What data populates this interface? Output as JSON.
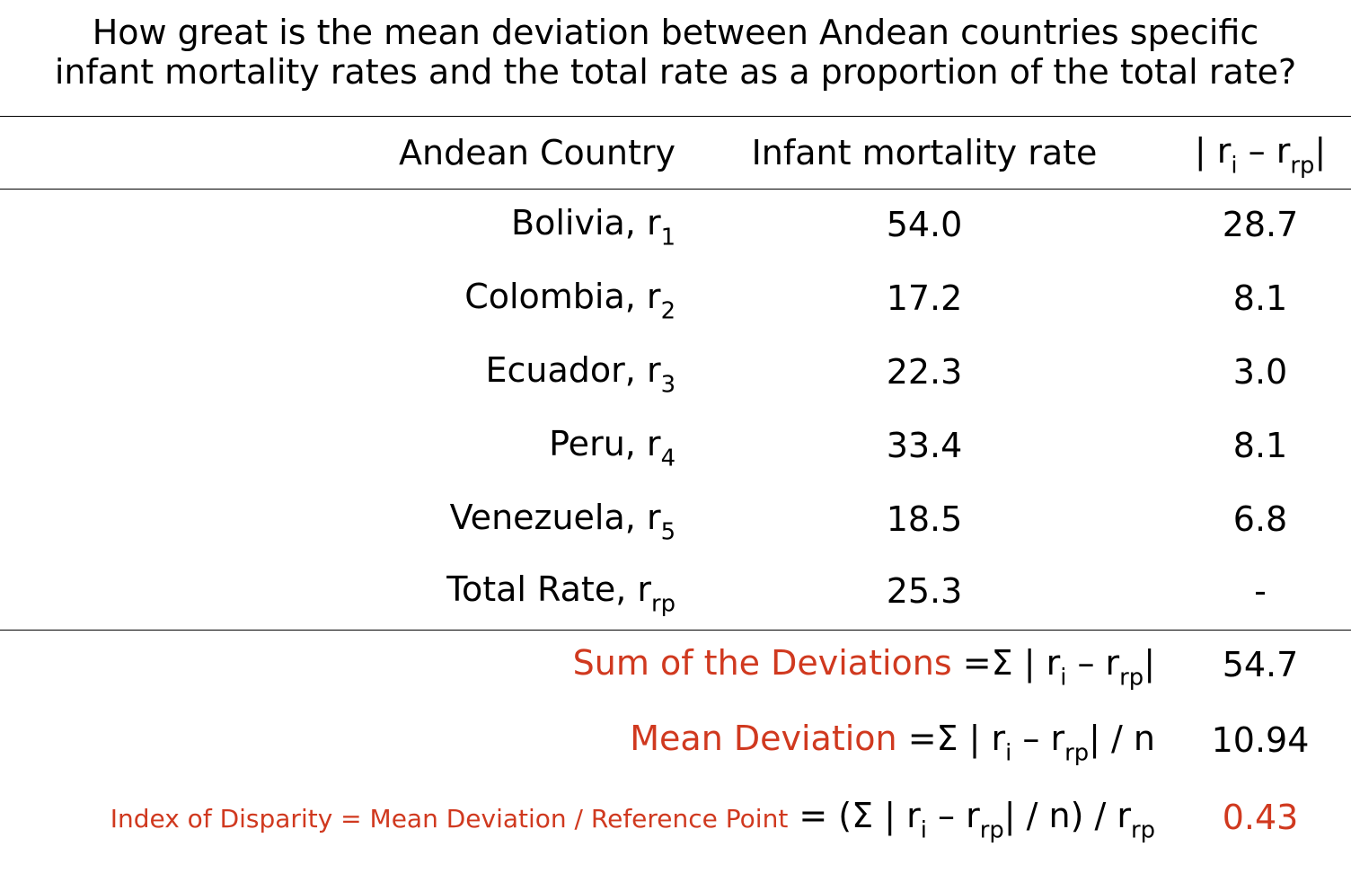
{
  "title_line1": "How great is the mean deviation between Andean countries specific",
  "title_line2": "infant mortality rates and the total rate as a proportion of the total rate?",
  "headers": {
    "country": "Andean Country",
    "rate": "Infant mortality rate",
    "dev_prefix": "| r",
    "dev_sub1": "i",
    "dev_mid": " – r",
    "dev_sub2": "rp",
    "dev_suffix": "|"
  },
  "rows": [
    {
      "name": "Bolivia, r",
      "sub": "1",
      "rate": "54.0",
      "dev": "28.7"
    },
    {
      "name": "Colombia, r",
      "sub": "2",
      "rate": "17.2",
      "dev": "8.1"
    },
    {
      "name": "Ecuador, r",
      "sub": "3",
      "rate": "22.3",
      "dev": "3.0"
    },
    {
      "name": "Peru, r",
      "sub": "4",
      "rate": "33.4",
      "dev": "8.1"
    },
    {
      "name": "Venezuela, r",
      "sub": "5",
      "rate": "18.5",
      "dev": "6.8"
    },
    {
      "name": "Total Rate, r",
      "sub": "rp",
      "rate": "25.3",
      "dev": "-"
    }
  ],
  "sum": {
    "label": "Sum of the Deviations",
    "formula_a": " =Σ | r",
    "formula_sub1": "i",
    "formula_b": " – r",
    "formula_sub2": "rp",
    "formula_c": "|",
    "value": "54.7"
  },
  "mean": {
    "label": "Mean Deviation",
    "formula_a": " =Σ | r",
    "formula_sub1": "i",
    "formula_b": " – r",
    "formula_sub2": "rp",
    "formula_c": "| / n",
    "value": "10.94"
  },
  "index": {
    "label": "Index of Disparity = Mean Deviation / Reference Point",
    "formula_a": " = (Σ | r",
    "formula_sub1": "i",
    "formula_b": " – r",
    "formula_sub2": "rp",
    "formula_c": "| / n) / r",
    "formula_sub3": "rp",
    "value": "0.43"
  },
  "colors": {
    "accent_red": "#d0391f",
    "text": "#000000"
  }
}
